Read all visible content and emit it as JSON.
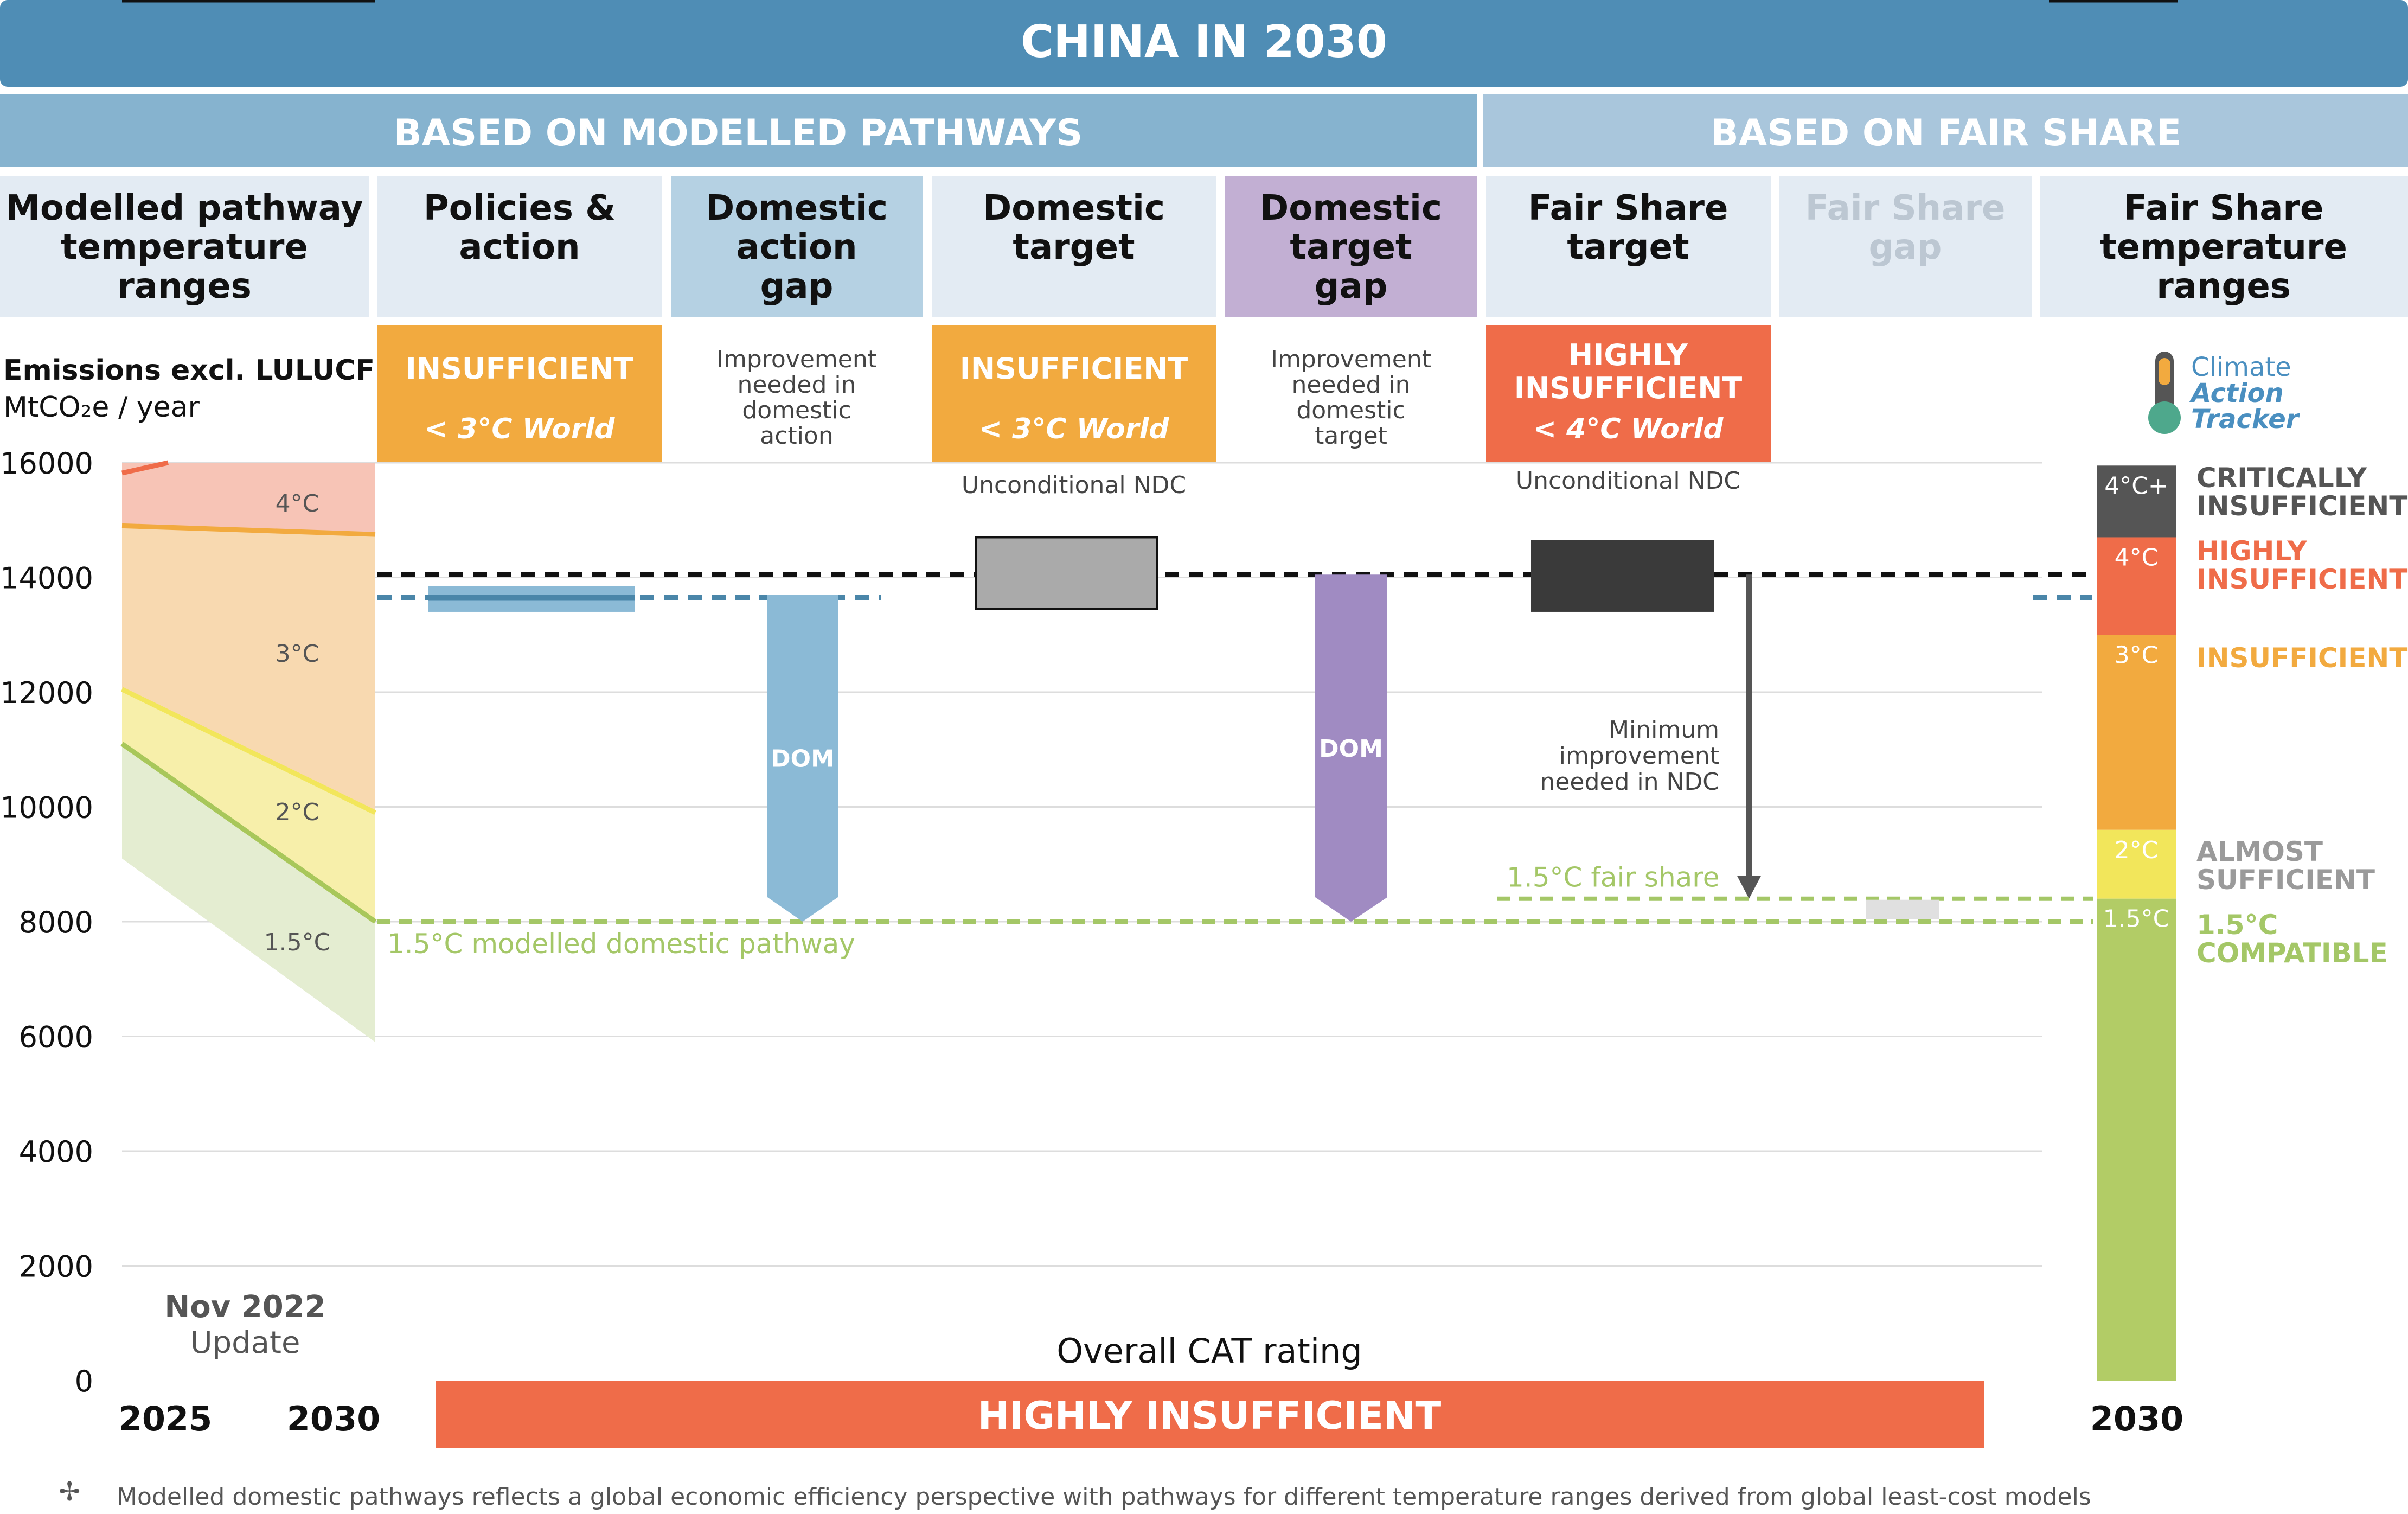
{
  "header": {
    "title": "CHINA IN 2030",
    "left_section": "BASED ON MODELLED PATHWAYS",
    "right_section": "BASED ON FAIR SHARE"
  },
  "colors": {
    "header_blue": "#4f8db5",
    "section_left": "#86b3cf",
    "section_right": "#a9c6dc",
    "col_plain": "#e3ebf3",
    "col_dom_action": "#b5d1e3",
    "col_dom_target": "#c2afd3",
    "insufficient": "#f2aa3f",
    "highly_insufficient": "#ef6c49",
    "critically": "#555555",
    "two_c": "#f2e65b",
    "one_five_c": "#b2cc66",
    "dom_blue": "#8bbad6",
    "dom_purple": "#a08bc2",
    "fair_share_green": "#a4c767",
    "policy_blue": "#4a86a9",
    "domestic_box_grey": "#aaaaaa",
    "fair_box_dark": "#3a3a3a"
  },
  "columns": {
    "c1": [
      "Modelled pathway",
      "temperature",
      "ranges"
    ],
    "c2": [
      "Policies &",
      "action"
    ],
    "c3": [
      "Domestic",
      "action",
      "gap"
    ],
    "c4": [
      "Domestic",
      "target"
    ],
    "c5": [
      "Domestic",
      "target",
      "gap"
    ],
    "c6": [
      "Fair Share",
      "target"
    ],
    "c7": [
      "Fair Share",
      "gap"
    ],
    "c8": [
      "Fair Share",
      "temperature",
      "ranges"
    ]
  },
  "ratings": {
    "policies": {
      "label": "INSUFFICIENT",
      "world": "< 3°C World"
    },
    "domestic_target": {
      "label": "INSUFFICIENT",
      "world": "< 3°C World"
    },
    "fair_share": {
      "label_1": "HIGHLY",
      "label_2": "INSUFFICIENT",
      "world": "< 4°C World"
    }
  },
  "notes": {
    "dom_action_gap": [
      "Improvement",
      "needed in",
      "domestic",
      "action"
    ],
    "dom_target_gap": [
      "Improvement",
      "needed in",
      "domestic",
      "target"
    ],
    "unconditional_ndc_1": "Unconditional NDC",
    "unconditional_ndc_2": "Unconditional NDC",
    "min_improvement": [
      "Minimum",
      "improvement",
      "needed in NDC"
    ],
    "dom_label": "DOM",
    "fair_share_line": "1.5°C fair share",
    "modelled_domestic_line": "1.5°C modelled domestic pathway",
    "nov": "Nov 2022",
    "update": "Update",
    "overall_label": "Overall CAT rating",
    "overall_value": "HIGHLY INSUFFICIENT",
    "footnote_symbol": "✢",
    "footnote": "Modelled domestic pathways reflects a global economic efficiency perspective with pathways for different temperature ranges derived from global least-cost models"
  },
  "logo": {
    "line1": "Climate",
    "line2": "Action",
    "line3": "Tracker"
  },
  "legend": {
    "critically": [
      "CRITICALLY",
      "INSUFFICIENT"
    ],
    "highly": [
      "HIGHLY",
      "INSUFFICIENT"
    ],
    "insufficient": [
      "INSUFFICIENT"
    ],
    "almost": [
      "ALMOST",
      "SUFFICIENT"
    ],
    "compatible": [
      "1.5°C",
      "COMPATIBLE"
    ]
  },
  "chart_data": {
    "type": "bar",
    "title": "CHINA IN 2030",
    "ylabel_1": "Emissions excl. LULUCF",
    "ylabel_2": "MtCO₂e / year",
    "ylim": [
      0,
      16000
    ],
    "y_ticks": [
      0,
      2000,
      4000,
      6000,
      8000,
      10000,
      12000,
      14000,
      16000
    ],
    "x_ticks": [
      "2025",
      "2030"
    ],
    "x_ticks_right": [
      "2030"
    ],
    "modelled_pathway_bands": [
      {
        "label": "4°C",
        "lower_2025": 14900,
        "lower_2030": 14750,
        "upper": 16000
      },
      {
        "label": "3°C",
        "lower_2025": 12050,
        "lower_2030": 9900,
        "upper_2025": 14900,
        "upper_2030": 14750
      },
      {
        "label": "2°C",
        "lower_2025": 11100,
        "lower_2030": 8000,
        "upper_2025": 12050,
        "upper_2030": 9900
      },
      {
        "label": "1.5°C",
        "lower_2025": 9100,
        "lower_2030": 5900,
        "upper_2025": 11100,
        "upper_2030": 8000
      }
    ],
    "policies_action_range": [
      13400,
      13850
    ],
    "policies_action_mid": 13650,
    "domestic_target_range": [
      13450,
      14700
    ],
    "fair_share_target_range": [
      13400,
      14650
    ],
    "current_ndc_level": 14050,
    "policies_dashed_level": 13650,
    "domestic_action_gap": {
      "from": 13700,
      "to": 8000
    },
    "domestic_target_gap": {
      "from": 14050,
      "to": 8000
    },
    "fair_share_level": 8400,
    "modelled_domestic_1_5_level": 8000,
    "fair_share_temperature_ranges": [
      {
        "label": "4°C+",
        "lower": 14700,
        "upper": 15950,
        "color": "#555555"
      },
      {
        "label": "4°C",
        "lower": 13000,
        "upper": 14700,
        "color": "#ef6c49"
      },
      {
        "label": "3°C",
        "lower": 9600,
        "upper": 13000,
        "color": "#f2aa3f"
      },
      {
        "label": "2°C",
        "lower": 8400,
        "upper": 9600,
        "color": "#f2e65b"
      },
      {
        "label": "1.5°C",
        "lower": 0,
        "upper": 8400,
        "color": "#b2cc66"
      }
    ]
  }
}
